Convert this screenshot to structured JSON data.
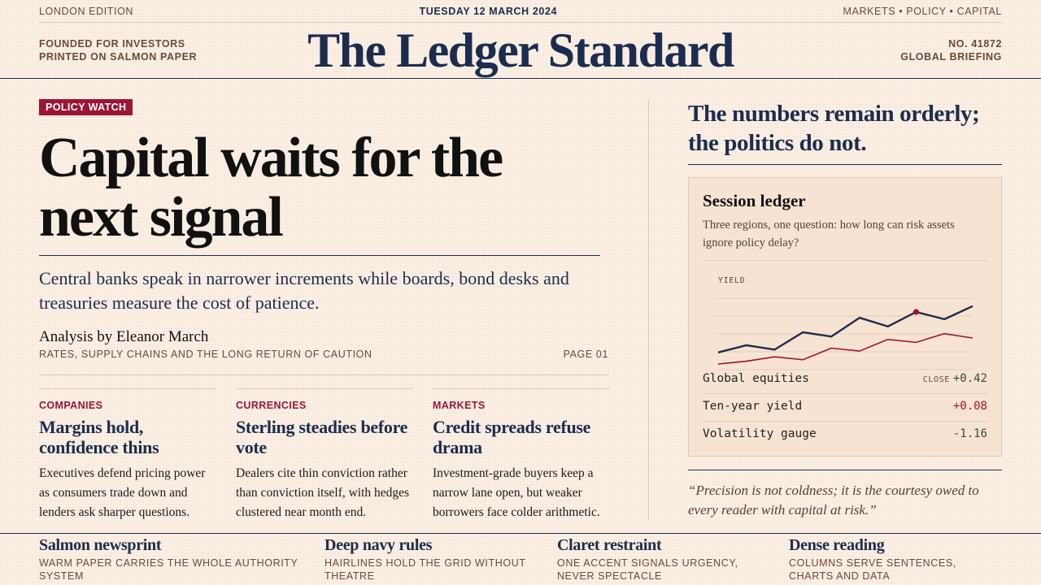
{
  "topbar": {
    "edition": "LONDON EDITION",
    "date": "TUESDAY 12 MARCH 2024",
    "sections": "MARKETS • POLICY • CAPITAL"
  },
  "masthead": {
    "left_line1": "FOUNDED FOR INVESTORS",
    "left_line2": "PRINTED ON SALMON PAPER",
    "title": "The Ledger Standard",
    "right_line1": "NO. 41872",
    "right_line2": "GLOBAL BRIEFING"
  },
  "lead": {
    "badge": "POLICY WATCH",
    "headline": "Capital waits for the next signal",
    "dek": "Central banks speak in narrower increments while boards, bond desks and treasuries measure the cost of patience.",
    "byline": "Analysis by Eleanor March",
    "subline": "RATES, SUPPLY CHAINS AND THE LONG RETURN OF CAUTION",
    "page": "PAGE 01"
  },
  "columns": [
    {
      "category": "COMPANIES",
      "headline": "Margins hold, confidence thins",
      "body": "Executives defend pricing power as consumers trade down and lenders ask sharper questions."
    },
    {
      "category": "CURRENCIES",
      "headline": "Sterling steadies before vote",
      "body": "Dealers cite thin conviction rather than conviction itself, with hedges clustered near month end."
    },
    {
      "category": "MARKETS",
      "headline": "Credit spreads refuse drama",
      "body": "Investment-grade buyers keep a narrow lane open, but weaker borrowers face colder arithmetic."
    }
  ],
  "sidebar": {
    "headline": "The numbers remain orderly; the politics do not.",
    "ledger_title": "Session ledger",
    "ledger_sub": "Three regions, one question: how long can risk assets ignore policy delay?",
    "close_label": "CLOSE",
    "rows": [
      {
        "name": "Global equities",
        "value": "+0.42"
      },
      {
        "name": "Ten-year yield",
        "value": "+0.08"
      },
      {
        "name": "Volatility gauge",
        "value": "-1.16"
      }
    ],
    "quote": "“Precision is not coldness; it is the courtesy owed to every reader with capital at risk.”"
  },
  "colors": {
    "navy": "#1b2d4f",
    "claret": "#9b1536",
    "paper": "#fcefe4",
    "positive": "#2f4f2a"
  },
  "chart_data": {
    "type": "line",
    "ylabel": "YIELD",
    "x": [
      0,
      1,
      2,
      3,
      4,
      5,
      6,
      7,
      8,
      9
    ],
    "series": [
      {
        "values": [
          48,
          53,
          50,
          62,
          59,
          72,
          66,
          76,
          71,
          80
        ],
        "color": "#1b2d4f",
        "marker_index": 7
      },
      {
        "values": [
          40,
          42,
          45,
          43,
          51,
          49,
          57,
          55,
          61,
          58
        ],
        "color": "#9b1536"
      }
    ],
    "ylim": [
      35,
      90
    ],
    "grid": true
  },
  "footer": [
    {
      "title": "Salmon newsprint",
      "subtitle": "WARM PAPER CARRIES THE WHOLE AUTHORITY SYSTEM"
    },
    {
      "title": "Deep navy rules",
      "subtitle": "HAIRLINES HOLD THE GRID WITHOUT THEATRE"
    },
    {
      "title": "Claret restraint",
      "subtitle": "ONE ACCENT SIGNALS URGENCY, NEVER SPECTACLE"
    },
    {
      "title": "Dense reading",
      "subtitle": "COLUMNS SERVE SENTENCES, CHARTS AND DATA"
    }
  ]
}
